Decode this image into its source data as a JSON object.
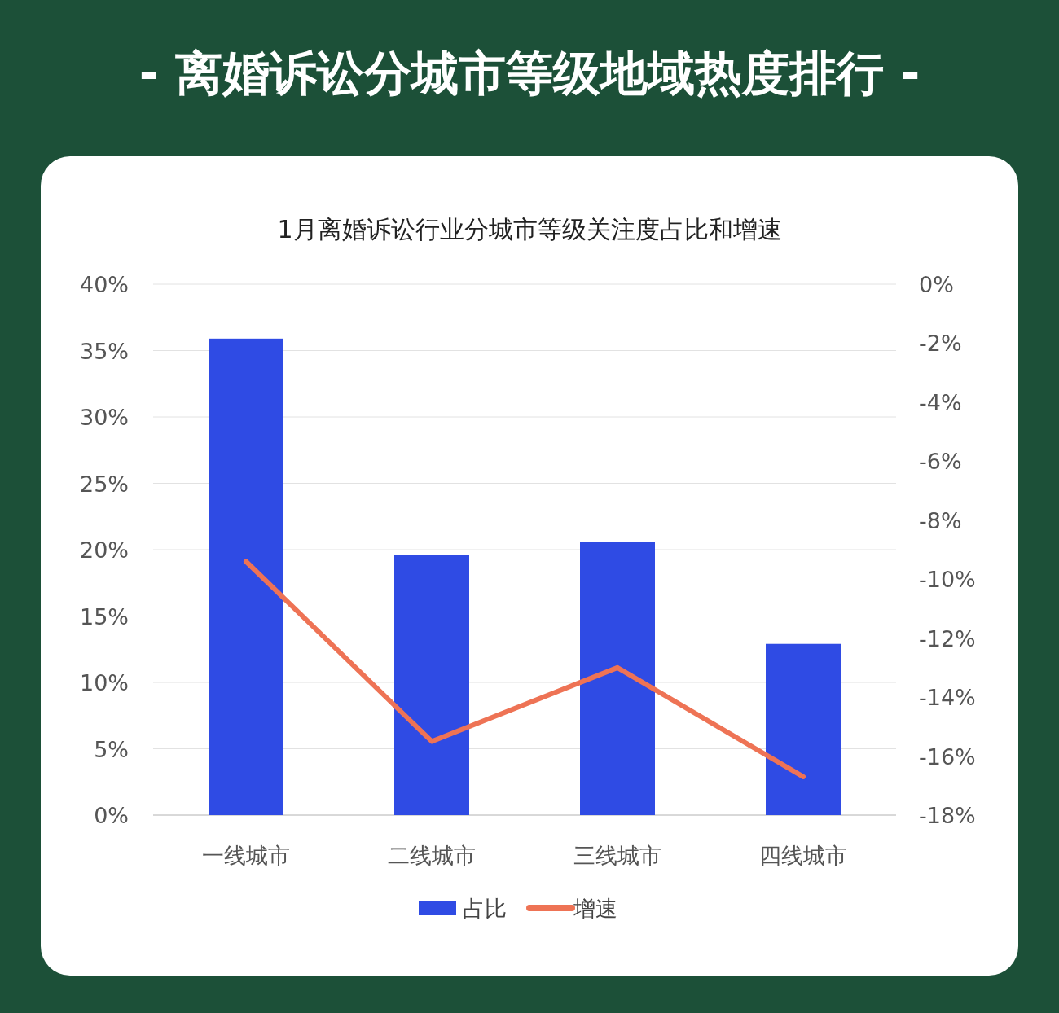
{
  "chart_data": {
    "type": "bar",
    "title": "- 离婚诉讼分城市等级地域热度排行 -",
    "subtitle": "1月离婚诉讼行业分城市等级关注度占比和增速",
    "categories": [
      "一线城市",
      "二线城市",
      "三线城市",
      "四线城市"
    ],
    "series": [
      {
        "name": "占比",
        "color": "#2f4be4",
        "values": [
          35.9,
          19.6,
          20.6,
          12.9
        ]
      },
      {
        "name": "增速",
        "type": "line",
        "axis": "y2",
        "color": "#ee7355",
        "values": [
          -9.4,
          -15.5,
          -13.0,
          -16.7
        ]
      }
    ],
    "ylim": [
      0,
      40
    ],
    "yticks": [
      {
        "value": 0,
        "label": "0%"
      },
      {
        "value": 5,
        "label": "5%"
      },
      {
        "value": 10,
        "label": "10%"
      },
      {
        "value": 15,
        "label": "15%"
      },
      {
        "value": 20,
        "label": "20%"
      },
      {
        "value": 25,
        "label": "25%"
      },
      {
        "value": 30,
        "label": "30%"
      },
      {
        "value": 35,
        "label": "35%"
      },
      {
        "value": 40,
        "label": "40%"
      }
    ],
    "y2lim": [
      -18,
      0
    ],
    "y2ticks": [
      {
        "value": 0,
        "label": "0%"
      },
      {
        "value": -2,
        "label": "-2%"
      },
      {
        "value": -4,
        "label": "-4%"
      },
      {
        "value": -6,
        "label": "-6%"
      },
      {
        "value": -8,
        "label": "-8%"
      },
      {
        "value": -10,
        "label": "-10%"
      },
      {
        "value": -12,
        "label": "-12%"
      },
      {
        "value": -14,
        "label": "-14%"
      },
      {
        "value": -16,
        "label": "-16%"
      },
      {
        "value": -18,
        "label": "-18%"
      }
    ],
    "grid": "y",
    "legend": "bottom",
    "marker": "none",
    "line_style": "solid"
  }
}
